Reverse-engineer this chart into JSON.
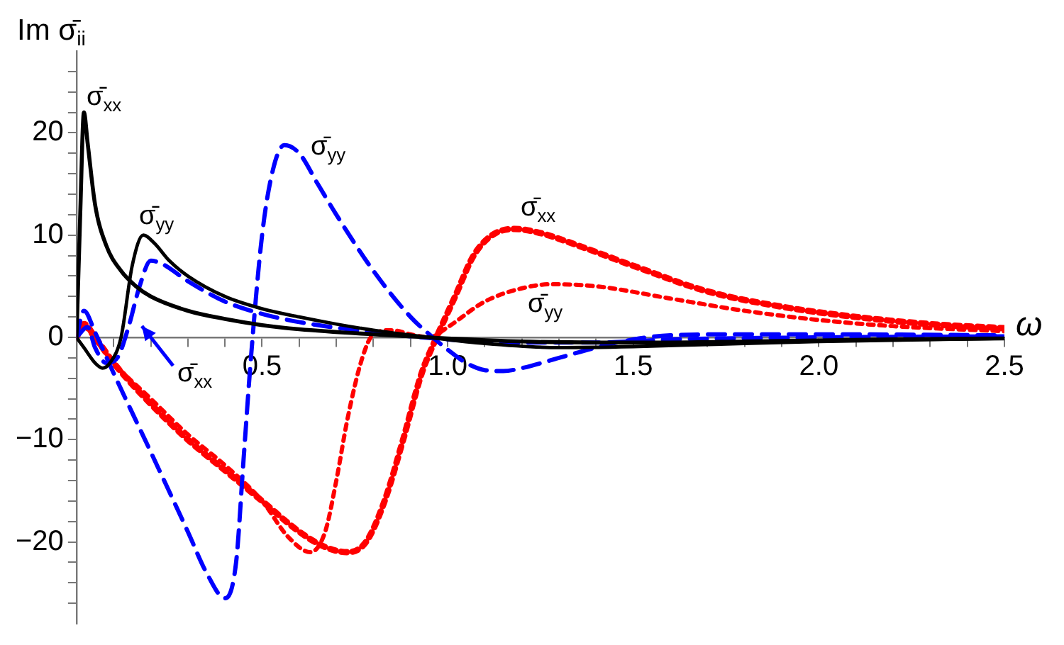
{
  "chart_data": {
    "type": "line",
    "xlabel": "ω",
    "ylabel": "Im σ̄$_{ii}$",
    "xlim": [
      0,
      2.5
    ],
    "ylim": [
      -28,
      28
    ],
    "xticks": [
      {
        "value": 0.1,
        "label": null
      },
      {
        "value": 0.2,
        "label": null
      },
      {
        "value": 0.3,
        "label": null
      },
      {
        "value": 0.4,
        "label": null
      },
      0.5,
      {
        "value": 0.6,
        "label": null
      },
      {
        "value": 0.7,
        "label": null
      },
      {
        "value": 0.8,
        "label": null
      },
      {
        "value": 0.9,
        "label": null
      },
      {
        "value": 1,
        "label": "1.0"
      },
      {
        "value": 1.1,
        "label": null
      },
      {
        "value": 1.2,
        "label": null
      },
      {
        "value": 1.3,
        "label": null
      },
      {
        "value": 1.4,
        "label": null
      },
      1.5,
      {
        "value": 1.6,
        "label": null
      },
      {
        "value": 1.7,
        "label": null
      },
      {
        "value": 1.8,
        "label": null
      },
      {
        "value": 1.9,
        "label": null
      },
      {
        "value": 2,
        "label": "2.0"
      },
      {
        "value": 2.1,
        "label": null
      },
      {
        "value": 2.2,
        "label": null
      },
      {
        "value": 2.3,
        "label": null
      },
      {
        "value": 2.4,
        "label": null
      },
      2.5
    ],
    "yticks": [
      {
        "value": -26,
        "label": null
      },
      {
        "value": -24,
        "label": null
      },
      {
        "value": -22,
        "label": null
      },
      -20,
      {
        "value": -18,
        "label": null
      },
      {
        "value": -16,
        "label": null
      },
      {
        "value": -14,
        "label": null
      },
      {
        "value": -12,
        "label": null
      },
      -10,
      {
        "value": -8,
        "label": null
      },
      {
        "value": -6,
        "label": null
      },
      {
        "value": -4,
        "label": null
      },
      {
        "value": -2,
        "label": null
      },
      0,
      {
        "value": 2,
        "label": null
      },
      {
        "value": 4,
        "label": null
      },
      {
        "value": 6,
        "label": null
      },
      {
        "value": 8,
        "label": null
      },
      10,
      {
        "value": 12,
        "label": null
      },
      {
        "value": 14,
        "label": null
      },
      {
        "value": 16,
        "label": null
      },
      {
        "value": 18,
        "label": null
      },
      20,
      {
        "value": 22,
        "label": null
      },
      {
        "value": 24,
        "label": null
      },
      {
        "value": 26,
        "label": null
      }
    ],
    "grid": false,
    "legend": false,
    "marker": "none",
    "series": [
      {
        "color": "#000000",
        "line_style": "solid",
        "x": [
          0,
          0.01,
          0.02,
          0.03,
          0.05,
          0.08,
          0.12,
          0.16,
          0.2,
          0.3,
          0.4,
          0.5,
          0.6,
          0.8,
          1.0,
          1.2,
          1.4,
          1.6,
          1.8,
          2.0,
          2.2,
          2.5
        ],
        "values": [
          0,
          12,
          22,
          19,
          13,
          9,
          6.5,
          5,
          4,
          2.6,
          1.8,
          1.2,
          0.8,
          0.3,
          -0.1,
          -0.4,
          -0.5,
          -0.5,
          -0.4,
          -0.3,
          -0.2,
          -0.1
        ]
      },
      {
        "color": "#000000",
        "line_style": "solid",
        "x": [
          0,
          0.02,
          0.05,
          0.07,
          0.09,
          0.12,
          0.15,
          0.18,
          0.21,
          0.25,
          0.3,
          0.4,
          0.5,
          0.6,
          0.7,
          0.8,
          0.95,
          1.1,
          1.3,
          1.5,
          1.7,
          2.0,
          2.5
        ],
        "values": [
          0,
          -1,
          -2.5,
          -3,
          -2.5,
          0,
          7,
          10,
          9.2,
          7.5,
          6,
          4,
          2.8,
          2,
          1.3,
          0.7,
          0,
          -0.6,
          -1,
          -0.9,
          -0.7,
          -0.4,
          -0.1
        ]
      },
      {
        "color": "#0000ff",
        "line_style": "dashed",
        "x": [
          0,
          0.03,
          0.05,
          0.08,
          0.11,
          0.14,
          0.17,
          0.2,
          0.23,
          0.3,
          0.4,
          0.5,
          0.6,
          0.8,
          1.0,
          1.2,
          1.4,
          1.6,
          2.0,
          2.5
        ],
        "values": [
          0,
          1,
          -1,
          -2.5,
          -2,
          1,
          5,
          7.5,
          7.2,
          5.5,
          3.5,
          2.3,
          1.5,
          0.5,
          -0.2,
          -0.5,
          -0.5,
          -0.2,
          0,
          0.1
        ]
      },
      {
        "color": "#0000ff",
        "line_style": "dashed",
        "x": [
          0,
          0.02,
          0.05,
          0.1,
          0.2,
          0.3,
          0.35,
          0.4,
          0.43,
          0.45,
          0.47,
          0.5,
          0.53,
          0.56,
          0.6,
          0.65,
          0.7,
          0.8,
          0.9,
          0.96,
          1.0,
          1.05,
          1.1,
          1.15,
          1.2,
          1.3,
          1.4,
          1.5,
          1.6,
          1.8,
          2.0,
          2.5
        ],
        "values": [
          0,
          2.6,
          0.5,
          -3.5,
          -11.2,
          -19,
          -23,
          -25.5,
          -22,
          -12,
          -2,
          10,
          16.5,
          18.8,
          18,
          15,
          12,
          6.5,
          2,
          0,
          -1.2,
          -2.5,
          -3.2,
          -3.3,
          -3,
          -2,
          -1,
          -0.2,
          0.2,
          0.3,
          0.3,
          0.2
        ]
      },
      {
        "color": "#ff0000",
        "line_style": "dotted",
        "x": [
          0,
          0.02,
          0.05,
          0.1,
          0.2,
          0.3,
          0.4,
          0.5,
          0.6,
          0.67,
          0.73,
          0.78,
          0.83,
          0.88,
          0.93,
          0.97,
          1.02,
          1.07,
          1.12,
          1.18,
          1.25,
          1.35,
          1.5,
          1.7,
          1.9,
          2.1,
          2.3,
          2.5
        ],
        "values": [
          0,
          1.3,
          0,
          -2.5,
          -6.5,
          -10,
          -13,
          -16,
          -19,
          -20.5,
          -21,
          -20,
          -16,
          -10,
          -3.5,
          0,
          4,
          8,
          10,
          10.6,
          10.2,
          9,
          7,
          4.5,
          3,
          2,
          1.3,
          0.9
        ]
      },
      {
        "color": "#ff0000",
        "line_style": "dotted",
        "x": [
          0,
          0.02,
          0.05,
          0.1,
          0.2,
          0.3,
          0.4,
          0.5,
          0.57,
          0.63,
          0.67,
          0.7,
          0.73,
          0.77,
          0.8,
          0.85,
          0.9,
          0.95,
          1.0,
          1.1,
          1.2,
          1.28,
          1.4,
          1.6,
          1.8,
          2.0,
          2.2,
          2.5
        ],
        "values": [
          0,
          1,
          -0.2,
          -2.5,
          -6,
          -9.5,
          -12.5,
          -16,
          -19.5,
          -21,
          -19,
          -14,
          -8,
          -2,
          0.3,
          0.7,
          0.3,
          0,
          1,
          3.5,
          4.8,
          5.2,
          5,
          3.8,
          2.6,
          1.7,
          1.1,
          0.6
        ]
      }
    ],
    "annotations": [
      "σ̄$_{xx}$",
      "σ̄$_{yy}$",
      "σ̄$_{yy}$",
      "σ̄$_{xx}$",
      "σ̄$_{xx}$",
      "σ̄$_{yy}$"
    ]
  }
}
